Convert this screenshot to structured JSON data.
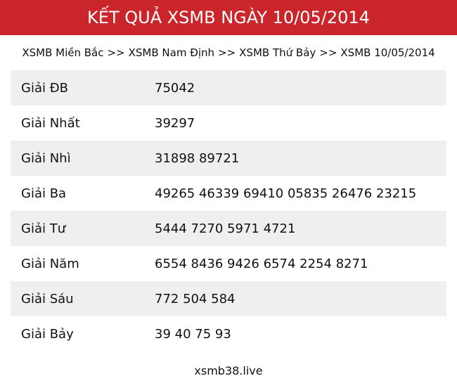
{
  "header": {
    "title": "KẾT QUẢ XSMB NGÀY 10/05/2014"
  },
  "breadcrumb": [
    "XSMB Miền Bắc",
    "XSMB Nam Định",
    "XSMB Thứ Bảy",
    "XSMB 10/05/2014"
  ],
  "breadcrumb_separator": ">>",
  "table": {
    "rows": [
      [
        "Giải ĐB",
        "75042"
      ],
      [
        "Giải Nhất",
        "39297"
      ],
      [
        "Giải Nhì",
        "31898 89721"
      ],
      [
        "Giải Ba",
        "49265 46339 69410 05835 26476 23215"
      ],
      [
        "Giải Tư",
        "5444 7270 5971 4721"
      ],
      [
        "Giải Năm",
        "6554 8436 9426 6574 2254 8271"
      ],
      [
        "Giải Sáu",
        "772 504 584"
      ],
      [
        "Giải Bảy",
        "39 40 75 93"
      ]
    ]
  },
  "footer": {
    "text": "xsmb38.live"
  }
}
